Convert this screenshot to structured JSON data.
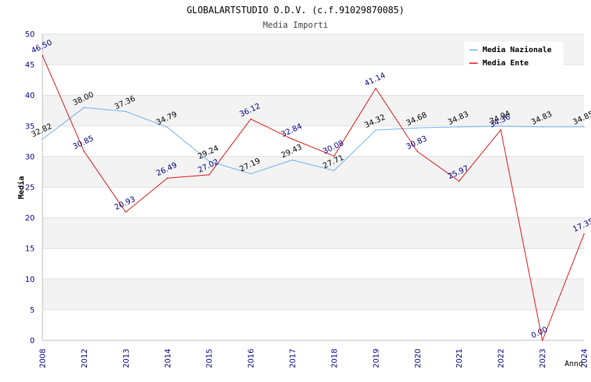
{
  "chart_data": {
    "type": "line",
    "title": "GLOBALARTSTUDIO O.D.V. (c.f.91029870085)",
    "subtitle": "Media Importi",
    "xlabel": "Anno",
    "ylabel": "Media",
    "ylim": [
      0,
      50
    ],
    "yticks": [
      0,
      5,
      10,
      15,
      20,
      25,
      30,
      35,
      40,
      45,
      50
    ],
    "categories": [
      "2008",
      "2012",
      "2013",
      "2014",
      "2015",
      "2016",
      "2017",
      "2018",
      "2019",
      "2020",
      "2021",
      "2022",
      "2023",
      "2024"
    ],
    "grid": "horizontal bands",
    "legend_position": "top-right",
    "series": [
      {
        "name": "Media Nazionale",
        "color": "#66aaee",
        "label_color": "#000000",
        "values": [
          32.82,
          38.0,
          37.36,
          34.79,
          29.24,
          27.19,
          29.43,
          27.71,
          34.32,
          34.68,
          34.83,
          34.94,
          34.83,
          34.85
        ],
        "labels": [
          "32.82",
          "38.00",
          "37.36",
          "34.79",
          "29.24",
          "27.19",
          "29.43",
          "27.71",
          "34.32",
          "34.68",
          "34.83",
          "34.94",
          "34.83",
          "34.85"
        ]
      },
      {
        "name": "Media Ente",
        "color": "#dd0000",
        "label_color": "#000080",
        "values": [
          46.5,
          30.85,
          20.93,
          26.49,
          27.02,
          36.12,
          32.84,
          30.08,
          41.14,
          30.83,
          25.97,
          34.36,
          0.0,
          17.35
        ],
        "labels": [
          "46.50",
          "30.85",
          "20.93",
          "26.49",
          "27.02",
          "36.12",
          "32.84",
          "30.08",
          "41.14",
          "30.83",
          "25.97",
          "34.36",
          "0.00",
          "17.35"
        ]
      }
    ]
  }
}
